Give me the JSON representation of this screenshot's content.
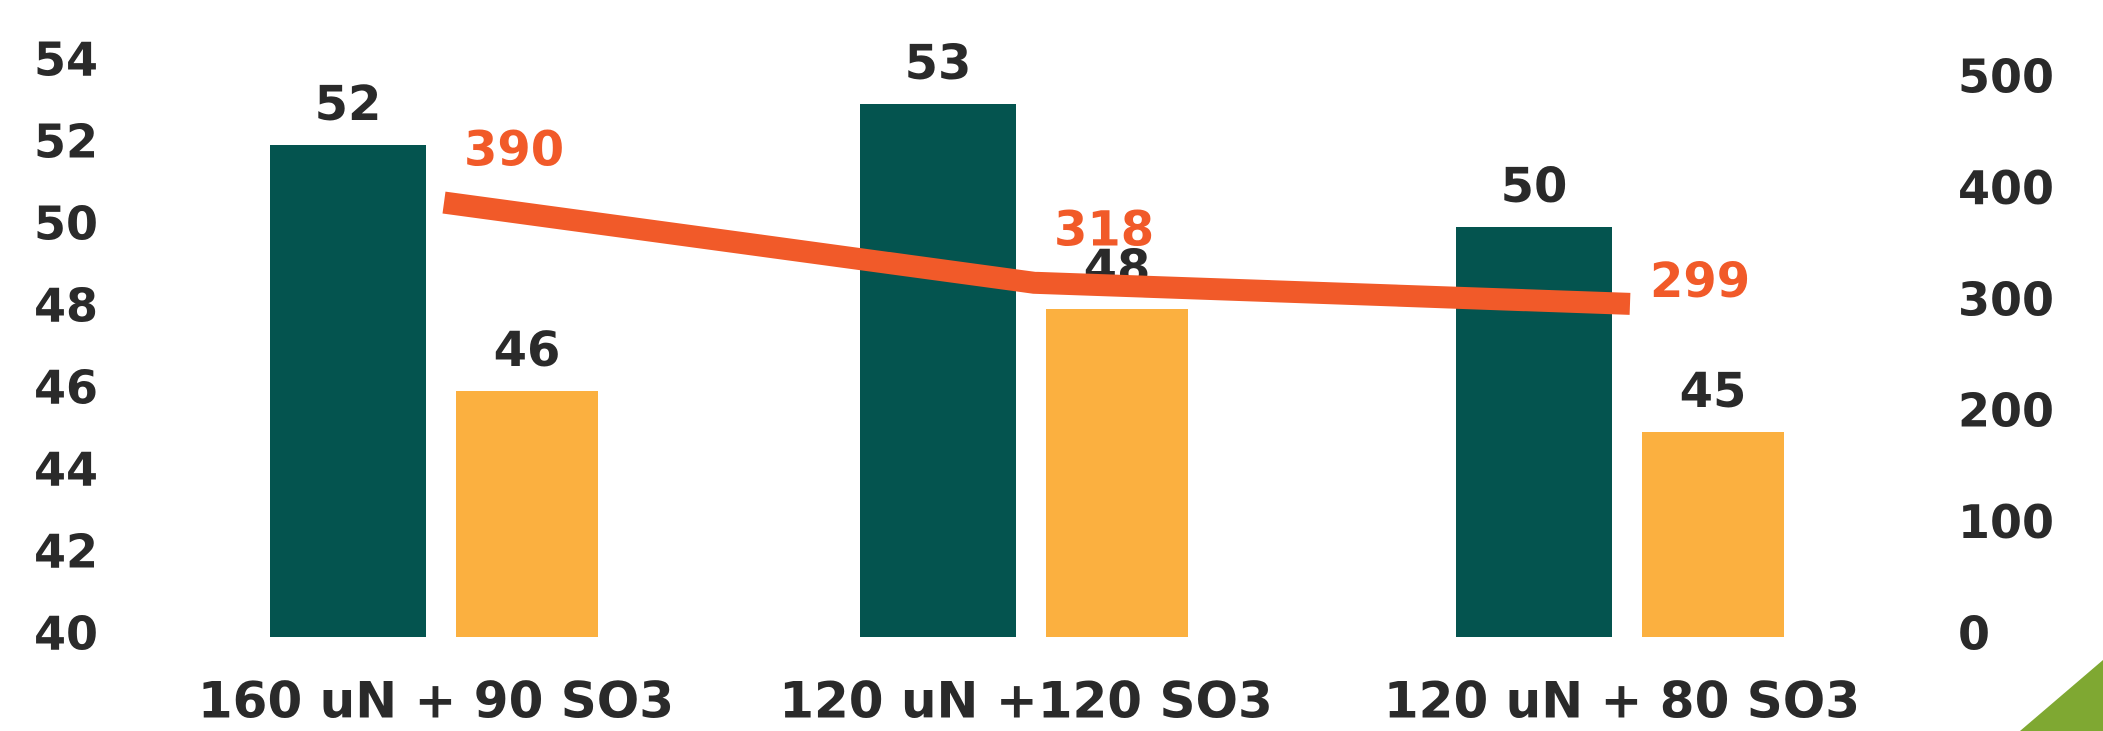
{
  "chart_data": {
    "type": "bar_line",
    "categories": [
      "160 uN + 90 SO3",
      "120 uN +120 SO3",
      "120 uN + 80 SO3"
    ],
    "series": [
      {
        "color": "#04544f",
        "values": [
          52,
          53,
          50
        ]
      },
      {
        "color": "#fbb040",
        "values": [
          46,
          48,
          45
        ]
      },
      {
        "color": "#f15a29",
        "values": [
          390,
          318,
          299
        ],
        "axis": "y2",
        "type": "line"
      }
    ],
    "ylim": [
      40,
      54
    ],
    "yticks": [
      40,
      42,
      44,
      46,
      48,
      50,
      52,
      54
    ],
    "y2lim": [
      0,
      500
    ],
    "y2ticks": [
      0,
      100,
      200,
      300,
      400,
      500
    ]
  }
}
